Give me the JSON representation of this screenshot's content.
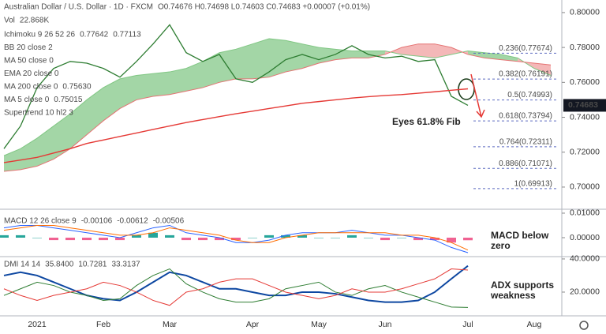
{
  "header": {
    "title": "Australian Dollar / U.S. Dollar · 1D · FXCM",
    "ohlc": "O0.74676 H0.74698 L0.74603 C0.74683 +0.00007 (+0.01%)",
    "volume": {
      "label": "Vol",
      "reading": {
        "value": 22868,
        "label": "22.868K"
      }
    },
    "indicators": [
      {
        "label": "Ichimoku 9 26 52 26",
        "readings": [
          0.77642,
          0.77113
        ]
      },
      {
        "label": "BB 20 close 2"
      },
      {
        "label": "MA 50 close 0"
      },
      {
        "label": "EMA 20 close 0"
      },
      {
        "label": "MA 200 close 0",
        "readings": [
          {
            "value": 0.7563,
            "label": "0.75630"
          }
        ]
      },
      {
        "label": "MA 5 close 0",
        "readings": [
          0.75015
        ]
      },
      {
        "label": "Supertrend 10 hl2 3"
      }
    ]
  },
  "chart_data": [
    {
      "type": "price",
      "categories": [
        null,
        null,
        "2021",
        null,
        null,
        null,
        "Feb",
        null,
        null,
        null,
        "Mar",
        null,
        null,
        null,
        null,
        "Apr",
        null,
        null,
        null,
        "May",
        null,
        null,
        null,
        "Jun",
        null,
        null,
        null,
        null,
        "Jul",
        null,
        null,
        null,
        "Aug",
        null
      ],
      "ylim": [
        0.6873,
        0.8072
      ],
      "yticks": [
        {
          "value": 0.8,
          "label": "0.80000"
        },
        {
          "value": 0.78,
          "label": "0.78000"
        },
        {
          "value": 0.76,
          "label": "0.76000"
        },
        {
          "value": 0.74,
          "label": "0.74000"
        },
        {
          "value": 0.72,
          "label": "0.72000"
        },
        {
          "value": 0.7,
          "label": "0.70000"
        }
      ],
      "price_tag": 0.74683,
      "series": [
        {
          "color": "#2e7d32",
          "values": [
            0.722,
            0.735,
            0.757,
            0.768,
            0.772,
            0.771,
            0.768,
            0.763,
            0.772,
            0.782,
            0.793,
            0.777,
            0.772,
            0.776,
            0.762,
            0.76,
            0.766,
            0.773,
            0.776,
            0.773,
            0.776,
            0.781,
            0.776,
            0.774,
            0.775,
            0.772,
            0.773,
            0.752,
            0.74683,
            null,
            null,
            null,
            null,
            null
          ]
        },
        {
          "color": "#e53935",
          "values": [
            0.714,
            0.7155,
            0.717,
            0.7195,
            0.722,
            0.725,
            0.727,
            0.729,
            0.731,
            0.733,
            0.735,
            0.737,
            0.7387,
            0.7404,
            0.742,
            0.7435,
            0.745,
            0.7465,
            0.748,
            0.749,
            0.75,
            0.751,
            0.7518,
            0.7525,
            0.753,
            0.7538,
            0.7546,
            0.7555,
            0.7563,
            null,
            null,
            null,
            null,
            null
          ]
        }
      ],
      "ichimoku": {
        "span_a": [
          0.718,
          0.722,
          0.728,
          0.735,
          0.742,
          0.75,
          0.757,
          0.762,
          0.764,
          0.765,
          0.766,
          0.768,
          0.772,
          0.777,
          0.779,
          0.782,
          0.785,
          0.784,
          0.782,
          0.78,
          0.779,
          0.778,
          0.778,
          0.778,
          0.776,
          0.775,
          0.774,
          0.776,
          0.778,
          0.777,
          0.776,
          0.774,
          0.768,
          0.764
        ],
        "span_b": [
          0.709,
          0.71,
          0.712,
          0.716,
          0.722,
          0.73,
          0.738,
          0.745,
          0.75,
          0.752,
          0.753,
          0.755,
          0.757,
          0.76,
          0.762,
          0.762,
          0.763,
          0.766,
          0.768,
          0.771,
          0.773,
          0.774,
          0.774,
          0.776,
          0.78,
          0.782,
          0.782,
          0.78,
          0.776,
          0.774,
          0.773,
          0.772,
          0.771,
          0.77
        ]
      },
      "fib_levels": [
        {
          "value": 0.77674,
          "label": "0.236(0.77674)"
        },
        {
          "value": 0.76191,
          "label": "0.382(0.76191)"
        },
        {
          "value": 0.74993,
          "label": "0.5(0.74993)"
        },
        {
          "value": 0.73794,
          "label": "0.618(0.73794)"
        },
        {
          "value": 0.72311,
          "label": "0.764(0.72311)"
        },
        {
          "value": 0.71071,
          "label": "0.886(0.71071)"
        },
        {
          "value": 0.69913,
          "label": "1(0.69913)"
        }
      ],
      "annotation": "Eyes 61.8% Fib"
    },
    {
      "type": "macd",
      "label": "MACD 12 26 close 9",
      "ylim": [
        -0.00774,
        0.0116
      ],
      "yticks": [
        {
          "value": 0.01,
          "label": "0.01000"
        },
        {
          "value": 0,
          "label": "0.00000"
        }
      ],
      "histogram": {
        "color": "#f06292",
        "up_color": "#26a69a",
        "values": [
          0.001,
          0.001,
          0,
          -0.001,
          -0.001,
          -0.001,
          -0.001,
          -0.001,
          0.001,
          0.002,
          0.001,
          -0.001,
          -0.001,
          -0.001,
          -0.001,
          0,
          0.001,
          0.001,
          0.001,
          0,
          0,
          0.001,
          0,
          -0.001,
          0,
          -0.001,
          -0.001,
          -0.002,
          -0.00106,
          null,
          null,
          null,
          null,
          null
        ]
      },
      "series": [
        {
          "color": "#2962ff",
          "values": [
            0.004,
            0.005,
            0.005,
            0.004,
            0.003,
            0.002,
            0.001,
            0,
            0.002,
            0.004,
            0.005,
            0.002,
            0.001,
            0,
            -0.002,
            -0.002,
            -0.001,
            0.001,
            0.002,
            0.002,
            0.002,
            0.003,
            0.002,
            0.001,
            0.001,
            0,
            -0.001,
            -0.004,
            -0.00612,
            null,
            null,
            null,
            null,
            null
          ]
        },
        {
          "color": "#ff6d00",
          "values": [
            0.003,
            0.004,
            0.005,
            0.005,
            0.004,
            0.003,
            0.002,
            0.001,
            0.001,
            0.002,
            0.004,
            0.003,
            0.002,
            0.001,
            -0.001,
            -0.002,
            -0.002,
            0,
            0.001,
            0.002,
            0.002,
            0.002,
            0.002,
            0.002,
            0.001,
            0.001,
            0,
            -0.002,
            -0.00506,
            null,
            null,
            null,
            null,
            null
          ]
        }
      ],
      "annotation": [
        "MACD below",
        "zero"
      ]
    },
    {
      "type": "dmi",
      "label": "DMI 14 14",
      "ylim": [
        5.7,
        41.4
      ],
      "yticks": [
        {
          "value": 40,
          "label": "40.0000"
        },
        {
          "value": 20,
          "label": "20.0000"
        }
      ],
      "series": [
        {
          "color": "#0d47a1",
          "reading": {
            "value": 35.84,
            "label": "35.8400"
          },
          "values": [
            30,
            32,
            30,
            26,
            22,
            18,
            16,
            15,
            20,
            26,
            32,
            30,
            26,
            22,
            22,
            20,
            18,
            18,
            20,
            20,
            19,
            17,
            15,
            14,
            14,
            15,
            20,
            28,
            35.84,
            null,
            null,
            null,
            null,
            null
          ]
        },
        {
          "color": "#2e7d32",
          "reading": 10.7281,
          "values": [
            18,
            22,
            26,
            24,
            20,
            18,
            15,
            16,
            24,
            30,
            34,
            25,
            20,
            16,
            14,
            14,
            16,
            22,
            24,
            26,
            20,
            18,
            22,
            24,
            20,
            17,
            14,
            11,
            10.7281,
            null,
            null,
            null,
            null,
            null
          ]
        },
        {
          "color": "#e53935",
          "reading": 33.3137,
          "values": [
            22,
            18,
            15,
            18,
            20,
            22,
            26,
            24,
            20,
            15,
            12,
            20,
            22,
            26,
            28,
            28,
            24,
            20,
            18,
            16,
            18,
            22,
            20,
            20,
            22,
            25,
            28,
            34,
            33.3137,
            null,
            null,
            null,
            null,
            null
          ]
        }
      ],
      "annotation": [
        "ADX supports",
        "weakness"
      ]
    }
  ]
}
